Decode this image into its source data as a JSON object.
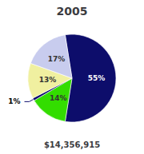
{
  "chart_data": {
    "type": "pie",
    "title": "2005",
    "subtitle": "$14,356,915",
    "values": [
      55,
      14,
      1,
      13,
      17
    ],
    "value_labels": [
      "55%",
      "14%",
      "1%",
      "13%",
      "17%"
    ],
    "colors": [
      "#0d0d6b",
      "#33dd00",
      "#0d0d6b",
      "#f0f0a0",
      "#c8ccee"
    ],
    "data_labels": true
  }
}
